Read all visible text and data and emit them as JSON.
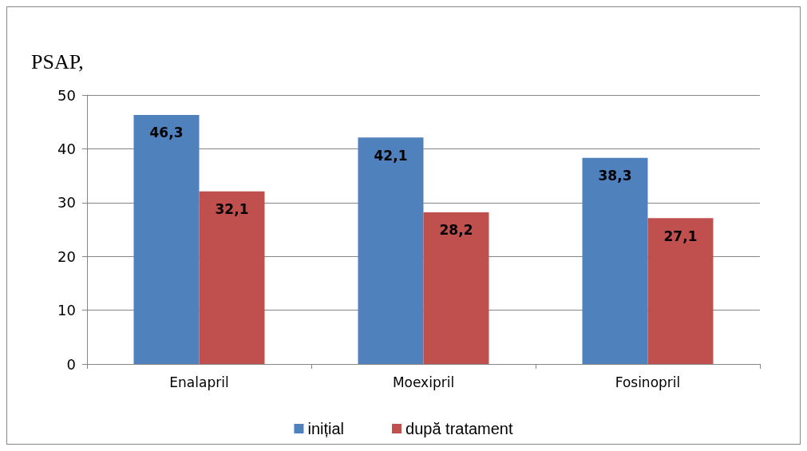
{
  "chart_data": {
    "type": "bar",
    "ylabel": "PSAP,",
    "categories": [
      "Enalapril",
      "Moexipril",
      "Fosinopril"
    ],
    "series": [
      {
        "name": "inițial",
        "color": "#4f81bd",
        "values": [
          46.3,
          42.1,
          38.3
        ],
        "value_labels": [
          "46,3",
          "42,1",
          "38,3"
        ]
      },
      {
        "name": "după tratament",
        "color": "#c0504d",
        "values": [
          32.1,
          28.2,
          27.1
        ],
        "value_labels": [
          "32,1",
          "28,2",
          "27,1"
        ]
      }
    ],
    "ylim": [
      0,
      50
    ],
    "yticks": [
      0,
      10,
      20,
      30,
      40,
      50
    ],
    "grid": "y",
    "legend": "bottom"
  }
}
